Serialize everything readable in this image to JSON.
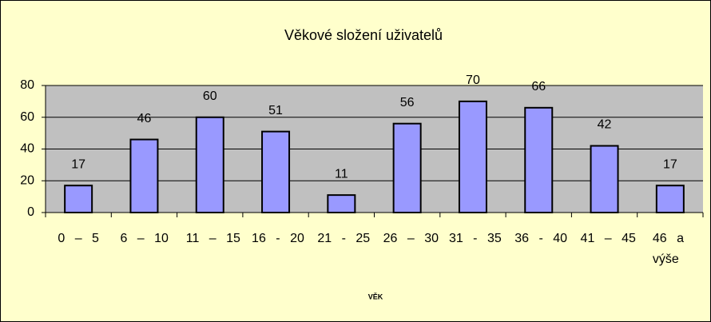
{
  "chart_data": {
    "type": "bar",
    "title": "Věkové složení uživatelů",
    "x_label": "VĚK",
    "categories": [
      "0 – 5",
      "6 – 10",
      "11 – 15",
      "16 - 20",
      "21 - 25",
      "26 – 30",
      "31 - 35",
      "36 - 40",
      "41 – 45",
      "46 a výše"
    ],
    "values": [
      17,
      46,
      60,
      51,
      11,
      56,
      70,
      66,
      42,
      17
    ],
    "color": "#9999ff",
    "plot_background": "#c0c0c0",
    "background": "#ffffcc",
    "ylim": [
      0,
      80
    ],
    "yticks": [
      0,
      20,
      40,
      60,
      80
    ],
    "grid": true
  }
}
